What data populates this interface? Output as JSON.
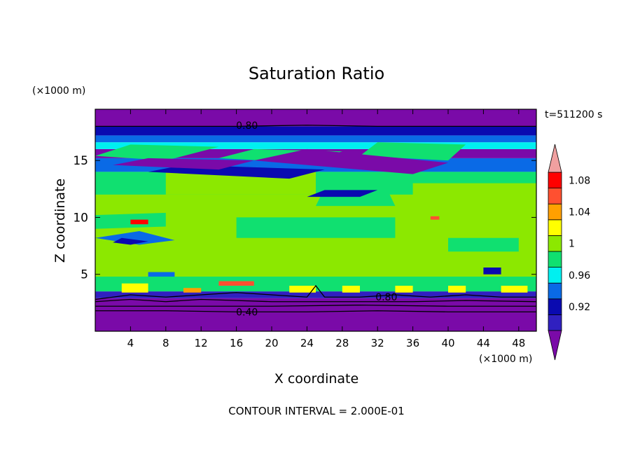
{
  "chart_data": {
    "type": "heatmap",
    "title": "Saturation Ratio",
    "time_label": "t=511200 s",
    "xlabel": "X coordinate",
    "ylabel": "Z coordinate",
    "x_unit": "(×1000 m)",
    "y_unit": "(×1000 m)",
    "xlim": [
      0,
      50
    ],
    "ylim": [
      0,
      19.5
    ],
    "x_ticks": [
      4,
      8,
      12,
      16,
      20,
      24,
      28,
      32,
      36,
      40,
      44,
      48
    ],
    "y_ticks": [
      5,
      10,
      15
    ],
    "footer": "CONTOUR INTERVAL = 2.000E-01",
    "contour_labels": [
      {
        "text": "0.80",
        "x": 17.2,
        "z": 18.1
      },
      {
        "text": "0.80",
        "x": 33.0,
        "z": 3.0
      },
      {
        "text": "0.40",
        "x": 17.2,
        "z": 1.7
      }
    ],
    "colorbar": {
      "levels": [
        0.9,
        0.92,
        0.94,
        0.96,
        0.98,
        1.0,
        1.02,
        1.04,
        1.06,
        1.08,
        1.1
      ],
      "tick_labels": [
        "0.92",
        "0.96",
        "1",
        "1.04",
        "1.08"
      ],
      "tick_values": [
        0.92,
        0.96,
        1.0,
        1.04,
        1.08
      ],
      "colors": [
        "#7a0aa8",
        "#3020c0",
        "#0a0ab0",
        "#0a6ae6",
        "#00f0f0",
        "#10e070",
        "#8ce800",
        "#ffff00",
        "#ffa000",
        "#ff5030",
        "#ff0000",
        "#f0a0a0"
      ],
      "under_color": "#7a0aa8",
      "over_color": "#f0a0a0"
    },
    "bands": [
      {
        "z0": 0.0,
        "z1": 1.6,
        "color": "#7a0aa8"
      },
      {
        "z0": 1.6,
        "z1": 2.9,
        "color": "#7a0aa8"
      },
      {
        "z0": 2.9,
        "z1": 3.5,
        "color": "#3020c0"
      },
      {
        "z0": 3.5,
        "z1": 4.8,
        "color": "#10e070"
      },
      {
        "z0": 4.8,
        "z1": 12.0,
        "color": "#8ce800"
      },
      {
        "z0": 12.0,
        "z1": 14.0,
        "color": "#10e070"
      },
      {
        "z0": 14.0,
        "z1": 15.2,
        "color": "#0a6ae6"
      },
      {
        "z0": 15.2,
        "z1": 16.0,
        "color": "#7a0aa8"
      },
      {
        "z0": 16.0,
        "z1": 16.6,
        "color": "#00f0f0"
      },
      {
        "z0": 16.6,
        "z1": 17.2,
        "color": "#0a6ae6"
      },
      {
        "z0": 17.2,
        "z1": 18.0,
        "color": "#0a0ab0"
      },
      {
        "z0": 18.0,
        "z1": 19.5,
        "color": "#7a0aa8"
      }
    ],
    "regions": [
      {
        "x": [
          0,
          50,
          50,
          0
        ],
        "z": [
          12.0,
          12.0,
          14.0,
          14.0
        ],
        "color": "#10e070"
      },
      {
        "x": [
          0,
          50,
          50,
          0
        ],
        "z": [
          4.8,
          4.8,
          12.0,
          12.0
        ],
        "color": "#8ce800"
      },
      {
        "x": [
          0,
          8,
          8,
          0
        ],
        "z": [
          9.0,
          9.2,
          10.4,
          10.2
        ],
        "color": "#10e070"
      },
      {
        "x": [
          0,
          5,
          9,
          5
        ],
        "z": [
          8.2,
          7.6,
          8.0,
          8.8
        ],
        "color": "#0a6ae6"
      },
      {
        "x": [
          2,
          4,
          6,
          3
        ],
        "z": [
          7.8,
          7.6,
          7.9,
          8.2
        ],
        "color": "#0a0ab0"
      },
      {
        "x": [
          16,
          34,
          34,
          16
        ],
        "z": [
          8.2,
          8.2,
          10.0,
          10.0
        ],
        "color": "#10e070"
      },
      {
        "x": [
          25,
          34,
          33,
          26
        ],
        "z": [
          11.0,
          11.0,
          12.6,
          12.6
        ],
        "color": "#10e070"
      },
      {
        "x": [
          8,
          25,
          25,
          8
        ],
        "z": [
          12.0,
          12.0,
          14.0,
          14.0
        ],
        "color": "#8ce800"
      },
      {
        "x": [
          36,
          50,
          50,
          36
        ],
        "z": [
          11.0,
          11.0,
          13.0,
          13.0
        ],
        "color": "#8ce800"
      },
      {
        "x": [
          40,
          48,
          48,
          40
        ],
        "z": [
          7.0,
          7.0,
          8.2,
          8.2
        ],
        "color": "#10e070"
      },
      {
        "x": [
          0,
          8,
          14,
          4
        ],
        "z": [
          15.4,
          15.0,
          16.2,
          16.4
        ],
        "color": "#10e070"
      },
      {
        "x": [
          14,
          24,
          28,
          18
        ],
        "z": [
          15.2,
          14.8,
          15.8,
          16.0
        ],
        "color": "#10e070"
      },
      {
        "x": [
          30,
          40,
          42,
          32
        ],
        "z": [
          15.4,
          15.0,
          16.4,
          16.6
        ],
        "color": "#10e070"
      },
      {
        "x": [
          6,
          22,
          26,
          10
        ],
        "z": [
          14.0,
          13.4,
          14.2,
          14.6
        ],
        "color": "#0a0ab0"
      },
      {
        "x": [
          18,
          36,
          40,
          24
        ],
        "z": [
          15.0,
          13.8,
          14.8,
          16.0
        ],
        "color": "#7a0aa8"
      },
      {
        "x": [
          2,
          14,
          18,
          6
        ],
        "z": [
          14.6,
          14.2,
          15.0,
          15.2
        ],
        "color": "#7a0aa8"
      },
      {
        "x": [
          24,
          30,
          32,
          26
        ],
        "z": [
          11.8,
          11.8,
          12.4,
          12.4
        ],
        "color": "#0a0ab0"
      },
      {
        "x": [
          4,
          6,
          6,
          4
        ],
        "z": [
          9.4,
          9.4,
          9.8,
          9.8
        ],
        "color": "#ff0000"
      },
      {
        "x": [
          38,
          39,
          39,
          38
        ],
        "z": [
          9.8,
          9.8,
          10.1,
          10.1
        ],
        "color": "#ff5030"
      },
      {
        "x": [
          14,
          18,
          18,
          14
        ],
        "z": [
          4.0,
          4.0,
          4.4,
          4.4
        ],
        "color": "#ff5030"
      },
      {
        "x": [
          3,
          6,
          6,
          3
        ],
        "z": [
          3.4,
          3.4,
          4.2,
          4.2
        ],
        "color": "#ffff00"
      },
      {
        "x": [
          22,
          25,
          25,
          22
        ],
        "z": [
          3.4,
          3.4,
          4.0,
          4.0
        ],
        "color": "#ffff00"
      },
      {
        "x": [
          34,
          36,
          36,
          34
        ],
        "z": [
          3.4,
          3.4,
          4.0,
          4.0
        ],
        "color": "#ffff00"
      },
      {
        "x": [
          46,
          49,
          49,
          46
        ],
        "z": [
          3.4,
          3.4,
          4.0,
          4.0
        ],
        "color": "#ffff00"
      },
      {
        "x": [
          28,
          30,
          30,
          28
        ],
        "z": [
          3.4,
          3.4,
          4.0,
          4.0
        ],
        "color": "#ffff00"
      },
      {
        "x": [
          40,
          42,
          42,
          40
        ],
        "z": [
          3.4,
          3.4,
          4.0,
          4.0
        ],
        "color": "#ffff00"
      },
      {
        "x": [
          10,
          12,
          12,
          10
        ],
        "z": [
          3.4,
          3.4,
          3.8,
          3.8
        ],
        "color": "#ffa000"
      },
      {
        "x": [
          44,
          46,
          46,
          44
        ],
        "z": [
          5.0,
          5.0,
          5.6,
          5.6
        ],
        "color": "#0a0ab0"
      },
      {
        "x": [
          6,
          9,
          9,
          6
        ],
        "z": [
          4.8,
          4.8,
          5.2,
          5.2
        ],
        "color": "#0a6ae6"
      }
    ],
    "contours": [
      {
        "label": "0.80",
        "points": [
          [
            0,
            18.0
          ],
          [
            8,
            18.0
          ],
          [
            16,
            18.0
          ],
          [
            24,
            18.1
          ],
          [
            32,
            18.0
          ],
          [
            40,
            18.0
          ],
          [
            50,
            18.0
          ]
        ]
      },
      {
        "label": "0.80",
        "points": [
          [
            0,
            2.8
          ],
          [
            4,
            3.2
          ],
          [
            8,
            3.0
          ],
          [
            12,
            3.2
          ],
          [
            16,
            3.4
          ],
          [
            20,
            3.2
          ],
          [
            24,
            3.0
          ],
          [
            25,
            4.0
          ],
          [
            26,
            3.0
          ],
          [
            30,
            3.0
          ],
          [
            34,
            3.2
          ],
          [
            38,
            3.0
          ],
          [
            42,
            3.2
          ],
          [
            46,
            3.0
          ],
          [
            50,
            3.0
          ]
        ]
      },
      {
        "label": "",
        "points": [
          [
            0,
            2.6
          ],
          [
            4,
            2.8
          ],
          [
            8,
            2.6
          ],
          [
            12,
            2.8
          ],
          [
            16,
            2.7
          ],
          [
            20,
            2.6
          ],
          [
            24,
            2.6
          ],
          [
            30,
            2.6
          ],
          [
            36,
            2.6
          ],
          [
            42,
            2.7
          ],
          [
            50,
            2.6
          ]
        ]
      },
      {
        "label": "0.40",
        "points": [
          [
            0,
            1.8
          ],
          [
            8,
            1.8
          ],
          [
            16,
            1.7
          ],
          [
            24,
            1.7
          ],
          [
            32,
            1.8
          ],
          [
            40,
            1.7
          ],
          [
            50,
            1.7
          ]
        ]
      },
      {
        "label": "",
        "points": [
          [
            0,
            2.2
          ],
          [
            10,
            2.2
          ],
          [
            20,
            2.2
          ],
          [
            30,
            2.3
          ],
          [
            40,
            2.2
          ],
          [
            50,
            2.2
          ]
        ]
      }
    ]
  }
}
